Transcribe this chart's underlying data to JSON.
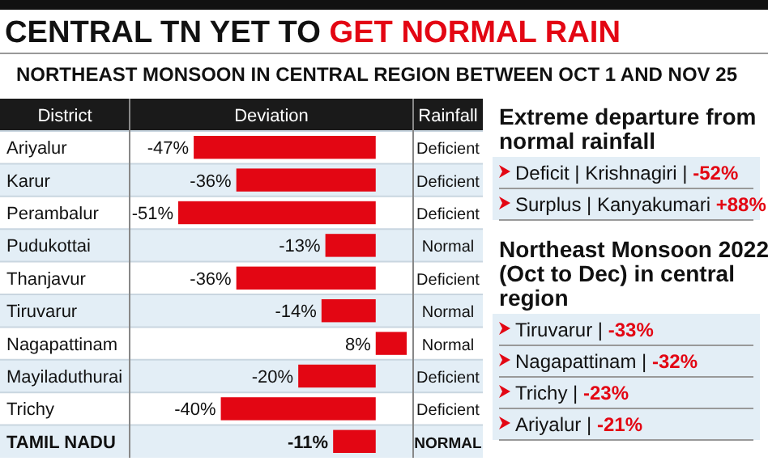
{
  "chart_data": [
    {
      "type": "bar",
      "orientation": "horizontal",
      "title": "CENTRAL TN YET TO GET NORMAL RAIN",
      "subtitle": "NORTHEAST MONSOON IN CENTRAL REGION BETWEEN OCT 1 AND NOV 25",
      "ylabel": "District",
      "xlabel": "Deviation",
      "categories": [
        "Ariyalur",
        "Karur",
        "Perambalur",
        "Pudukottai",
        "Thanjavur",
        "Tiruvarur",
        "Nagapattinam",
        "Mayiladuthurai",
        "Trichy",
        "TAMIL NADU"
      ],
      "values": [
        -47,
        -36,
        -51,
        -13,
        -36,
        -14,
        8,
        -20,
        -40,
        -11
      ],
      "value_labels": [
        "-47%",
        "-36%",
        "-51%",
        "-13%",
        "-36%",
        "-14%",
        "8%",
        "-20%",
        "-40%",
        "-11%"
      ],
      "color": "#e30613",
      "annotations": [
        "Rainfall",
        "Deficient",
        "Deficient",
        "Deficient",
        "Normal",
        "Deficient",
        "Normal",
        "Normal",
        "Deficient",
        "Deficient",
        "NORMAL"
      ]
    },
    {
      "type": "other",
      "title": "Extreme departure from normal rainfall",
      "annotations": [
        "Deficit | Krishnagiri | -52%",
        "Surplus | Kanyakumari +88%"
      ]
    },
    {
      "type": "other",
      "title": "Northeast Monsoon 2022 (Oct to Dec) in central region",
      "annotations": [
        "Tiruvarur | -33%",
        "Nagapattinam | -32%",
        "Trichy | -23%",
        "Ariyalur | -21%"
      ]
    }
  ]
}
